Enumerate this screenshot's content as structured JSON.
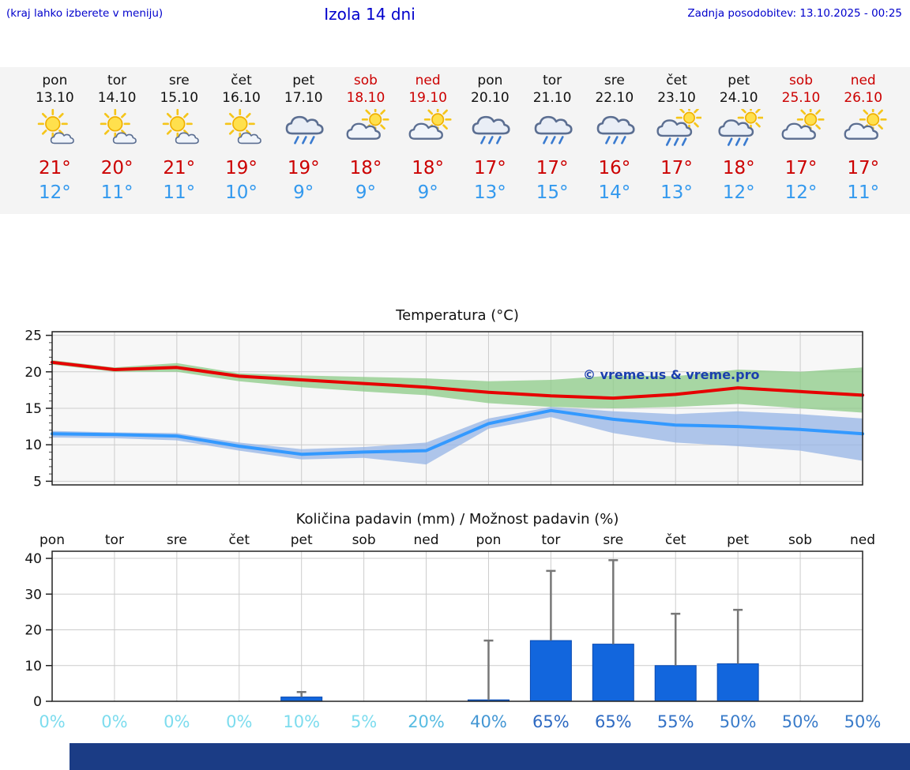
{
  "header": {
    "note": "(kraj lahko izberete v meniju)",
    "title": "Izola 14 dni",
    "updated": "Zadnja posodobitev: 13.10.2025 - 00:25"
  },
  "colors": {
    "link_blue": "#0000cc",
    "weekend_red": "#cc0000",
    "weekday_black": "#111111",
    "high_red": "#cc0000",
    "low_blue": "#3399ee",
    "max_line_red": "#e60000",
    "min_line_blue": "#3399ff",
    "bar_blue": "#1266dd",
    "whisker_gray": "#777777",
    "grid_gray": "#cccccc",
    "plot_bg": "#f7f7f7",
    "footer_navy": "#1b3c85",
    "watermark_navy": "#1b3fae"
  },
  "forecast": {
    "days": [
      {
        "name": "pon",
        "date": "13.10",
        "weekend": false,
        "icon": "mostly-sunny-icon",
        "high": "21°",
        "low": "12°"
      },
      {
        "name": "tor",
        "date": "14.10",
        "weekend": false,
        "icon": "mostly-sunny-icon",
        "high": "20°",
        "low": "11°"
      },
      {
        "name": "sre",
        "date": "15.10",
        "weekend": false,
        "icon": "mostly-sunny-icon",
        "high": "21°",
        "low": "11°"
      },
      {
        "name": "čet",
        "date": "16.10",
        "weekend": false,
        "icon": "mostly-sunny-icon",
        "high": "19°",
        "low": "10°"
      },
      {
        "name": "pet",
        "date": "17.10",
        "weekend": false,
        "icon": "rain-icon",
        "high": "19°",
        "low": "9°"
      },
      {
        "name": "sob",
        "date": "18.10",
        "weekend": true,
        "icon": "partly-cloudy-icon",
        "high": "18°",
        "low": "9°"
      },
      {
        "name": "ned",
        "date": "19.10",
        "weekend": true,
        "icon": "partly-cloudy-icon",
        "high": "18°",
        "low": "9°"
      },
      {
        "name": "pon",
        "date": "20.10",
        "weekend": false,
        "icon": "rain-icon",
        "high": "17°",
        "low": "13°"
      },
      {
        "name": "tor",
        "date": "21.10",
        "weekend": false,
        "icon": "rain-icon",
        "high": "17°",
        "low": "15°"
      },
      {
        "name": "sre",
        "date": "22.10",
        "weekend": false,
        "icon": "rain-icon",
        "high": "16°",
        "low": "14°"
      },
      {
        "name": "čet",
        "date": "23.10",
        "weekend": false,
        "icon": "sun-rain-icon",
        "high": "17°",
        "low": "13°"
      },
      {
        "name": "pet",
        "date": "24.10",
        "weekend": false,
        "icon": "sun-rain-icon",
        "high": "18°",
        "low": "12°"
      },
      {
        "name": "sob",
        "date": "25.10",
        "weekend": true,
        "icon": "partly-cloudy-icon",
        "high": "17°",
        "low": "12°"
      },
      {
        "name": "ned",
        "date": "26.10",
        "weekend": true,
        "icon": "partly-cloudy-icon",
        "high": "17°",
        "low": "11°"
      }
    ]
  },
  "chart_data": [
    {
      "type": "line",
      "title": "Temperatura (°C)",
      "categories": [
        "pon",
        "tor",
        "sre",
        "čet",
        "pet",
        "sob",
        "ned",
        "pon",
        "tor",
        "sre",
        "čet",
        "pet",
        "sob",
        "ned"
      ],
      "ylim": [
        4.5,
        25.5
      ],
      "yticks": [
        5,
        10,
        15,
        20,
        25
      ],
      "grid": true,
      "watermark": "© vreme.us & vreme.pro",
      "series": [
        {
          "name": "max-temp",
          "color": "#e60000",
          "values": [
            21.3,
            20.3,
            20.6,
            19.4,
            18.9,
            18.4,
            17.9,
            17.2,
            16.7,
            16.4,
            16.9,
            17.8,
            17.3,
            16.8
          ]
        },
        {
          "name": "min-temp",
          "color": "#3399ff",
          "values": [
            11.5,
            11.4,
            11.2,
            9.8,
            8.7,
            9.0,
            9.2,
            12.9,
            14.7,
            13.5,
            12.7,
            12.5,
            12.1,
            11.5
          ]
        }
      ],
      "bands": [
        {
          "name": "max-temp-range",
          "color": "#8ccb87",
          "opacity": 0.75,
          "upper": [
            21.6,
            20.6,
            21.2,
            19.8,
            19.5,
            19.3,
            19.1,
            18.7,
            18.9,
            19.5,
            19.4,
            20.3,
            20.0,
            20.6
          ],
          "lower": [
            21.0,
            20.0,
            20.0,
            18.7,
            17.9,
            17.3,
            16.8,
            15.7,
            15.2,
            15.0,
            15.2,
            15.6,
            15.0,
            14.4
          ]
        },
        {
          "name": "min-temp-range",
          "color": "#96b4e6",
          "opacity": 0.75,
          "upper": [
            11.9,
            11.7,
            11.6,
            10.3,
            9.4,
            9.7,
            10.3,
            13.6,
            15.2,
            14.6,
            14.2,
            14.6,
            14.2,
            13.6
          ],
          "lower": [
            11.0,
            10.9,
            10.6,
            9.2,
            8.0,
            8.2,
            7.3,
            12.2,
            13.8,
            11.6,
            10.3,
            9.8,
            9.2,
            7.8
          ]
        }
      ]
    },
    {
      "type": "bar",
      "title": "Količina padavin (mm) / Možnost padavin (%)",
      "categories": [
        "pon",
        "tor",
        "sre",
        "čet",
        "pet",
        "sob",
        "ned",
        "pon",
        "tor",
        "sre",
        "čet",
        "pet",
        "sob",
        "ned"
      ],
      "ylim": [
        0,
        42
      ],
      "yticks": [
        0,
        10,
        20,
        30,
        40
      ],
      "grid": true,
      "values": [
        0,
        0,
        0,
        0,
        1.2,
        0,
        0,
        0.4,
        17,
        16,
        10,
        10.5,
        0,
        0
      ],
      "whisker_max": [
        0,
        0,
        0,
        0,
        2.6,
        0,
        0,
        17,
        36.5,
        39.5,
        24.5,
        25.6,
        0,
        0
      ],
      "probabilities": [
        "0%",
        "0%",
        "0%",
        "0%",
        "10%",
        "5%",
        "20%",
        "40%",
        "65%",
        "65%",
        "55%",
        "50%",
        "50%",
        "50%"
      ],
      "prob_colors": [
        "#7ddcee",
        "#7ddcee",
        "#7ddcee",
        "#7ddcee",
        "#7ddcee",
        "#7ddcee",
        "#58bce2",
        "#4497d4",
        "#2e6ac2",
        "#2e6ac2",
        "#3372c6",
        "#3a7cca",
        "#3a7cca",
        "#3a7cca"
      ]
    }
  ]
}
